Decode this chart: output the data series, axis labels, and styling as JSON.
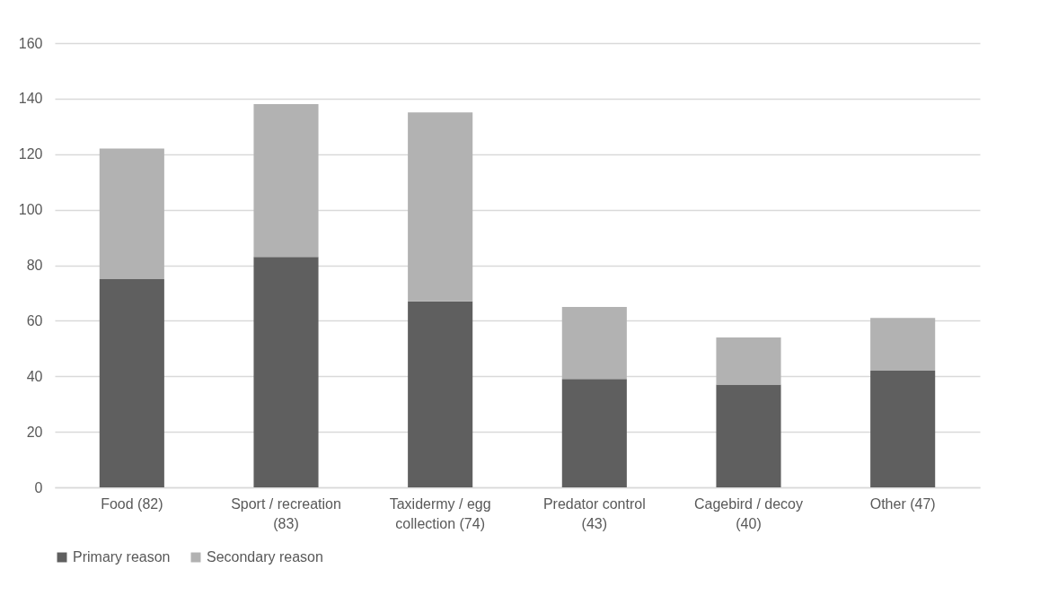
{
  "chart_data": {
    "type": "bar",
    "stacked": true,
    "categories": [
      "Food (82)",
      "Sport / recreation (83)",
      "Taxidermy / egg collection (74)",
      "Predator control (43)",
      "Cagebird / decoy (40)",
      "Other (47)"
    ],
    "series": [
      {
        "name": "Primary reason",
        "color": "#5f5f5f",
        "values": [
          75,
          83,
          67,
          39,
          37,
          42
        ]
      },
      {
        "name": "Secondary reason",
        "color": "#b2b2b2",
        "values": [
          47,
          55,
          68,
          26,
          17,
          19
        ]
      }
    ],
    "ylim": [
      0,
      160
    ],
    "yticks": [
      0,
      20,
      40,
      60,
      80,
      100,
      120,
      140,
      160
    ],
    "grid": "y",
    "legend": "bottom"
  }
}
